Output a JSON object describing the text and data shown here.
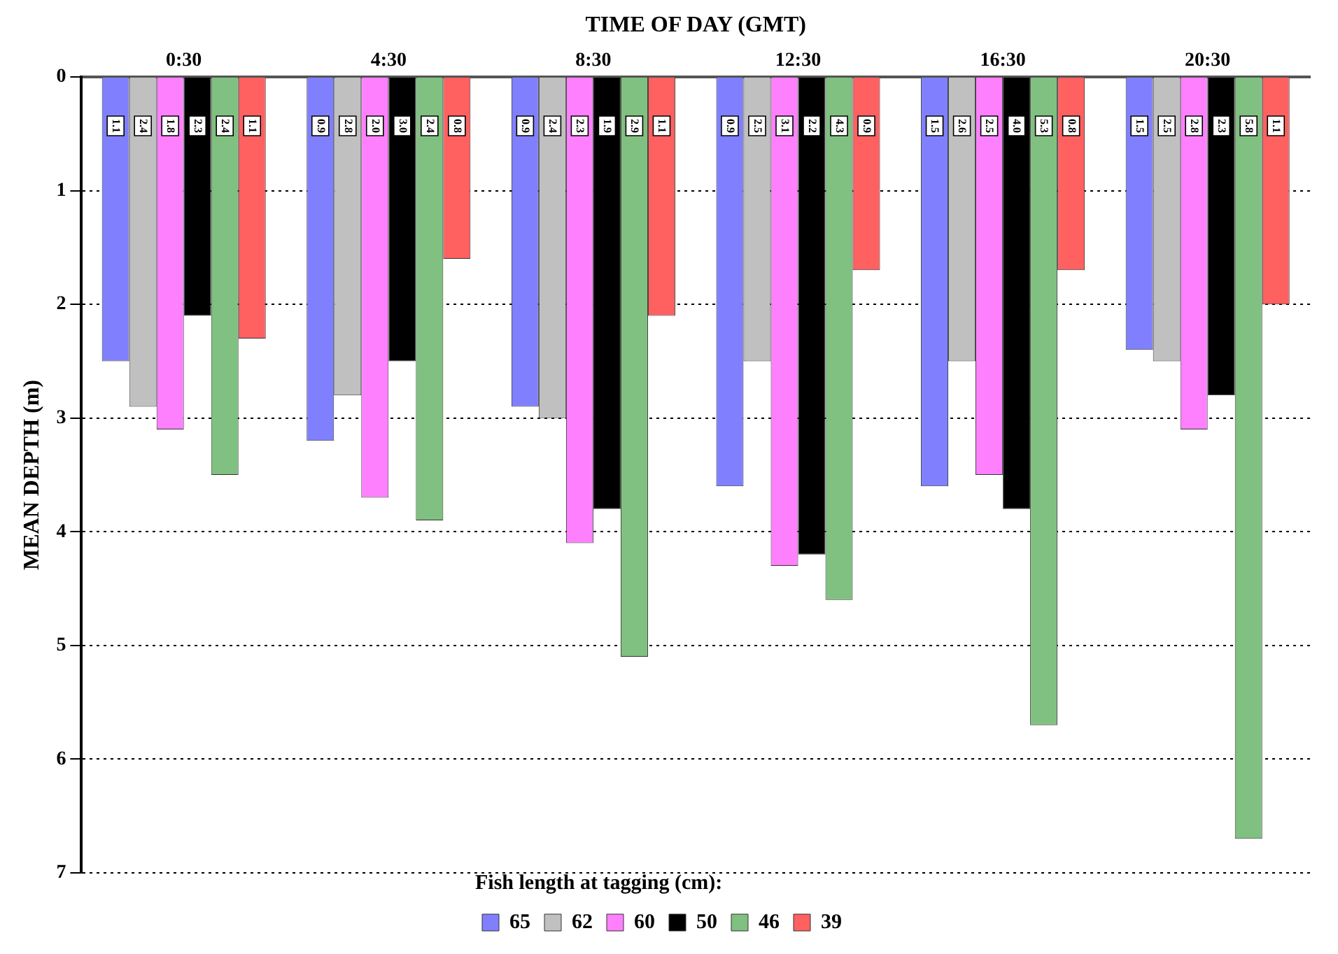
{
  "chart_data": {
    "type": "bar",
    "xlabel": "TIME OF DAY (GMT)",
    "ylabel": "MEAN DEPTH (m)",
    "legend_title": "Fish length at tagging (cm):",
    "categories": [
      "0:30",
      "4:30",
      "8:30",
      "12:30",
      "16:30",
      "20:30"
    ],
    "series": [
      {
        "name": "65",
        "color": "#8080ff",
        "values": [
          2.5,
          3.2,
          2.9,
          3.6,
          3.6,
          2.4
        ]
      },
      {
        "name": "62",
        "color": "#c0c0c0",
        "values": [
          2.9,
          2.8,
          3.0,
          2.5,
          2.5,
          2.5
        ]
      },
      {
        "name": "60",
        "color": "#ff80ff",
        "values": [
          3.1,
          3.7,
          4.1,
          4.3,
          3.5,
          3.1
        ]
      },
      {
        "name": "50",
        "color": "#000000",
        "values": [
          2.1,
          2.5,
          3.8,
          4.2,
          3.8,
          2.8
        ]
      },
      {
        "name": "46",
        "color": "#80c080",
        "values": [
          3.5,
          3.9,
          5.1,
          4.6,
          5.7,
          6.7
        ]
      },
      {
        "name": "39",
        "color": "#ff6060",
        "values": [
          2.3,
          1.6,
          2.1,
          1.7,
          1.7,
          2.0
        ]
      }
    ],
    "annotations": [
      "1.1",
      "2.4",
      "1.8",
      "2.3",
      "2.4",
      "1.1",
      "0.9",
      "2.8",
      "2.0",
      "3.0",
      "2.4",
      "0.8",
      "0.9",
      "2.4",
      "2.3",
      "1.9",
      "2.9",
      "1.1",
      "0.9",
      "2.5",
      "3.1",
      "2.2",
      "4.3",
      "0.9",
      "1.5",
      "2.6",
      "2.5",
      "4.0",
      "5.3",
      "0.8",
      "1.5",
      "2.5",
      "2.8",
      "2.3",
      "5.8",
      "1.1"
    ],
    "ylim": [
      7,
      0
    ],
    "yticks": [
      0,
      1,
      2,
      3,
      4,
      5,
      6,
      7
    ],
    "grid": "y",
    "legend": "bottom"
  }
}
